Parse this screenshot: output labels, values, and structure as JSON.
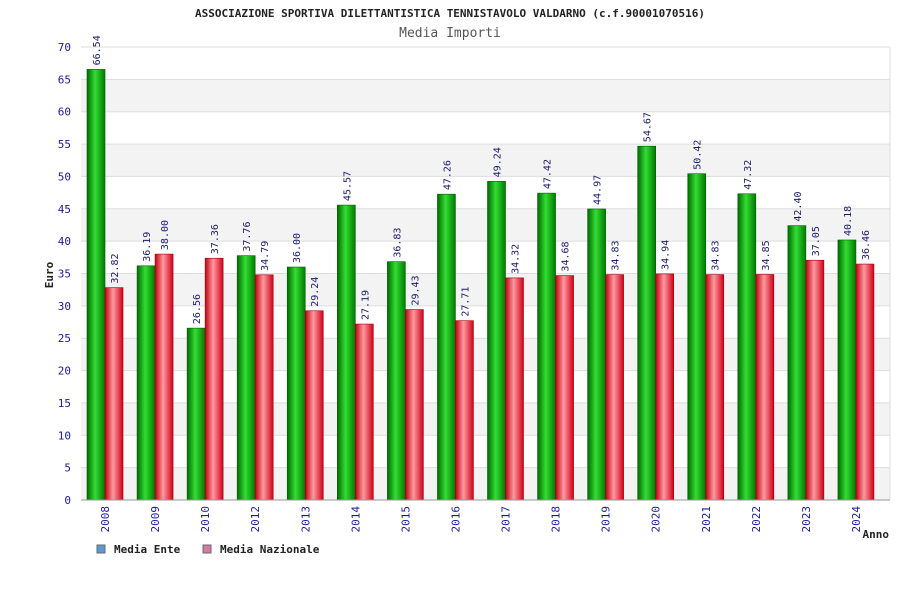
{
  "chart_data": {
    "type": "bar",
    "title": "ASSOCIAZIONE SPORTIVA DILETTANTISTICA TENNISTAVOLO VALDARNO (c.f.90001070516)",
    "subtitle": "Media Importi",
    "xlabel": "Anno",
    "ylabel": "Euro",
    "ylim": [
      0,
      70
    ],
    "yticks": [
      0,
      5,
      10,
      15,
      20,
      25,
      30,
      35,
      40,
      45,
      50,
      55,
      60,
      65,
      70
    ],
    "grid": true,
    "legend_position": "bottom-left",
    "categories": [
      "2008",
      "2009",
      "2010",
      "2012",
      "2013",
      "2014",
      "2015",
      "2016",
      "2017",
      "2018",
      "2019",
      "2020",
      "2021",
      "2022",
      "2023",
      "2024"
    ],
    "series": [
      {
        "name": "Media Ente",
        "color": "#00a000",
        "legend_color": "#5b9bd5",
        "values": [
          66.54,
          36.19,
          26.56,
          37.76,
          36.0,
          45.57,
          36.83,
          47.26,
          49.24,
          47.42,
          44.97,
          54.67,
          50.42,
          47.32,
          42.4,
          40.18
        ],
        "labels": [
          "66.54",
          "36.19",
          "26.56",
          "37.76",
          "36.00",
          "45.57",
          "36.83",
          "47.26",
          "49.24",
          "47.42",
          "44.97",
          "54.67",
          "50.42",
          "47.32",
          "42.40",
          "40.18"
        ]
      },
      {
        "name": "Media Nazionale",
        "color": "#e0101a",
        "legend_color": "#d77aa8",
        "values": [
          32.82,
          38.0,
          37.36,
          34.79,
          29.24,
          27.19,
          29.43,
          27.71,
          34.32,
          34.68,
          34.83,
          34.94,
          34.83,
          34.85,
          37.05,
          36.46
        ],
        "labels": [
          "32.82",
          "38.00",
          "37.36",
          "34.79",
          "29.24",
          "27.19",
          "29.43",
          "27.71",
          "34.32",
          "34.68",
          "34.83",
          "34.94",
          "34.83",
          "34.85",
          "37.05",
          "36.46"
        ]
      }
    ]
  }
}
